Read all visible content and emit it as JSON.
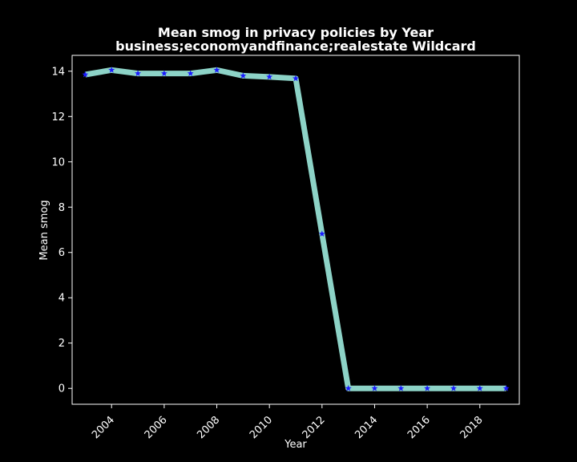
{
  "chart_data": {
    "type": "line",
    "title": "Mean smog in privacy policies by Year",
    "subtitle": "business;economyandfinance;realestate Wildcard",
    "xlabel": "Year",
    "ylabel": "Mean smog",
    "xlim": [
      2002.5,
      2019.5
    ],
    "ylim": [
      -0.7,
      14.7
    ],
    "xticks": [
      2004,
      2006,
      2008,
      2010,
      2012,
      2014,
      2016,
      2018
    ],
    "yticks": [
      0,
      2,
      4,
      6,
      8,
      10,
      12,
      14
    ],
    "grid": false,
    "series": [
      {
        "x": [
          2003,
          2004,
          2005,
          2006,
          2007,
          2008,
          2009,
          2010,
          2011,
          2012,
          2013,
          2014,
          2015,
          2016,
          2017,
          2018,
          2019
        ],
        "y": [
          13.85,
          14.05,
          13.9,
          13.9,
          13.9,
          14.05,
          13.8,
          13.75,
          13.68,
          6.82,
          0,
          0,
          0,
          0,
          0,
          0,
          0
        ],
        "line_color": "#8dd3c7",
        "marker": "star",
        "marker_color": "#1a1aff"
      }
    ]
  }
}
